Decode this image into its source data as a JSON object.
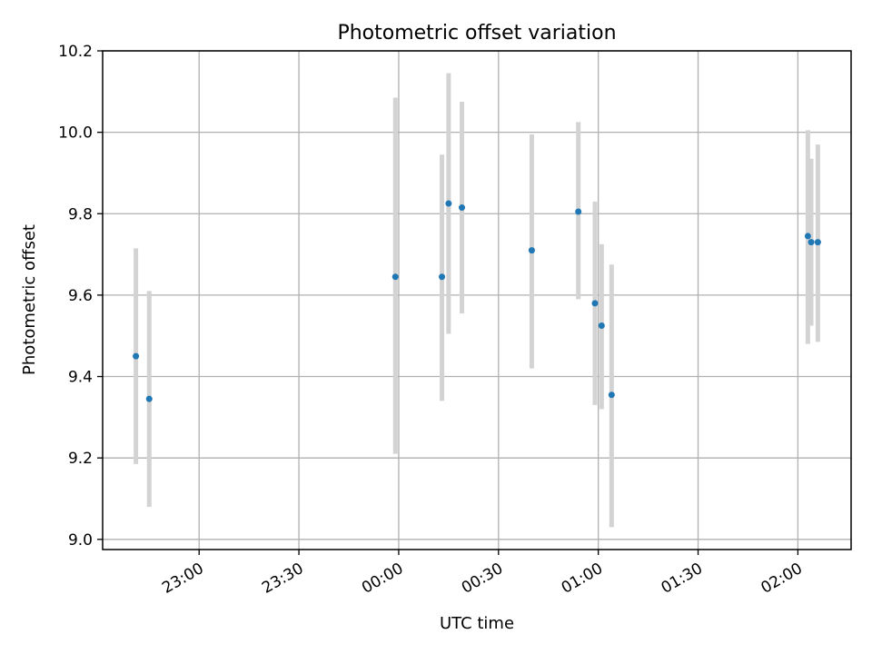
{
  "chart_data": {
    "type": "scatter",
    "title": "Photometric offset variation",
    "xlabel": "UTC time",
    "ylabel": "Photometric offset",
    "ylim": [
      8.975,
      10.2
    ],
    "xlim": [
      "22:31",
      "02:16"
    ],
    "grid": true,
    "x_ticks": [
      {
        "time": "23:00",
        "label": "23:00"
      },
      {
        "time": "23:30",
        "label": "23:30"
      },
      {
        "time": "00:00",
        "label": "00:00"
      },
      {
        "time": "00:30",
        "label": "00:30"
      },
      {
        "time": "01:00",
        "label": "01:00"
      },
      {
        "time": "01:30",
        "label": "01:30"
      },
      {
        "time": "02:00",
        "label": "02:00"
      }
    ],
    "y_ticks": [
      {
        "value": 9.0,
        "label": "9.0"
      },
      {
        "value": 9.2,
        "label": "9.2"
      },
      {
        "value": 9.4,
        "label": "9.4"
      },
      {
        "value": 9.6,
        "label": "9.6"
      },
      {
        "value": 9.8,
        "label": "9.8"
      },
      {
        "value": 10.0,
        "label": "10.0"
      },
      {
        "value": 10.2,
        "label": "10.2"
      }
    ],
    "points": [
      {
        "time": "22:41",
        "y": 9.45,
        "low": 9.185,
        "high": 9.715
      },
      {
        "time": "22:45",
        "y": 9.345,
        "low": 9.08,
        "high": 9.61
      },
      {
        "time": "23:59",
        "y": 9.645,
        "low": 9.21,
        "high": 10.085
      },
      {
        "time": "00:13",
        "y": 9.645,
        "low": 9.34,
        "high": 9.945
      },
      {
        "time": "00:15",
        "y": 9.825,
        "low": 9.505,
        "high": 10.145
      },
      {
        "time": "00:19",
        "y": 9.815,
        "low": 9.555,
        "high": 10.075
      },
      {
        "time": "00:40",
        "y": 9.71,
        "low": 9.42,
        "high": 9.995
      },
      {
        "time": "00:54",
        "y": 9.805,
        "low": 9.59,
        "high": 10.025
      },
      {
        "time": "00:59",
        "y": 9.58,
        "low": 9.33,
        "high": 9.83
      },
      {
        "time": "01:01",
        "y": 9.525,
        "low": 9.32,
        "high": 9.725
      },
      {
        "time": "01:04",
        "y": 9.355,
        "low": 9.03,
        "high": 9.675
      },
      {
        "time": "02:03",
        "y": 9.745,
        "low": 9.48,
        "high": 10.005
      },
      {
        "time": "02:04",
        "y": 9.73,
        "low": 9.525,
        "high": 9.935
      },
      {
        "time": "02:06",
        "y": 9.73,
        "low": 9.485,
        "high": 9.97
      }
    ],
    "colors": {
      "marker": "#1f77b4",
      "errorbar": "#d3d3d3",
      "grid": "#b0b0b0",
      "axes": "#000000"
    }
  }
}
